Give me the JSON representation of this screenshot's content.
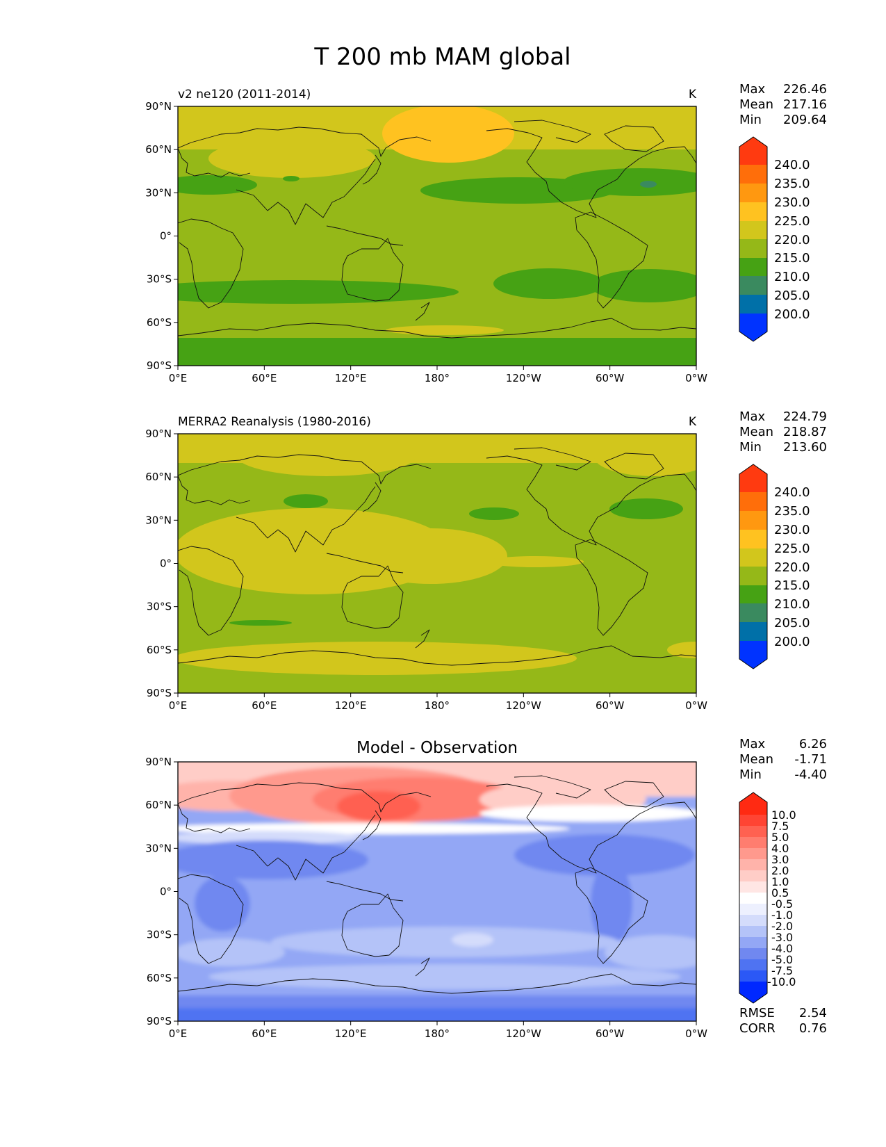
{
  "figure_title": "T 200 mb MAM global",
  "lat_ticks": [
    "90°N",
    "60°N",
    "30°N",
    "0°",
    "30°S",
    "60°S",
    "90°S"
  ],
  "lon_ticks": [
    "0°E",
    "60°E",
    "120°E",
    "180°",
    "120°W",
    "60°W",
    "0°W"
  ],
  "stat_names": {
    "max": "Max",
    "mean": "Mean",
    "min": "Min",
    "rmse": "RMSE",
    "corr": "CORR"
  },
  "colors": {
    "c195_200": "#0033ff",
    "c200_205": "#0070a8",
    "c205_210": "#3a8a5f",
    "c210_215": "#46a214",
    "c215_220": "#95b818",
    "c220_225": "#d2c61c",
    "c225_230": "#ffc220",
    "c230_235": "#ff9810",
    "c235_240": "#ff6e0a",
    "c240_up": "#ff3a10",
    "d_m10": "#0028ff",
    "d_m7_5": "#2b58f6",
    "d_m5": "#4f73f2",
    "d_m4": "#7088f0",
    "d_m3": "#93a7f5",
    "d_m2": "#b4c3f8",
    "d_m1": "#d4dcfb",
    "d_m0_5": "#edf0fe",
    "d_0_5": "#ffffff",
    "d_1": "#ffe6e4",
    "d_2": "#ffcdc7",
    "d_3": "#ffb3aa",
    "d_4": "#ff998d",
    "d_5": "#ff7d6f",
    "d_7_5": "#ff6151",
    "d_10": "#ff4433",
    "d_up": "#ff2a12"
  },
  "panels": [
    {
      "title": "v2 ne120 (2011-2014)",
      "units": "K",
      "stats": {
        "max": "226.46",
        "mean": "217.16",
        "min": "209.64"
      },
      "colorbar": {
        "labels": [
          "240.0",
          "235.0",
          "230.0",
          "225.0",
          "220.0",
          "215.0",
          "210.0",
          "205.0",
          "200.0"
        ]
      },
      "field_description": "Model 200 mb temperature: mostly 215-220 K, warm 225-230 K over the North Pacific at 60°N, cool 210-215 K bands at 30°N and 40-50°S and over Antarctica."
    },
    {
      "title": "MERRA2 Reanalysis (1980-2016)",
      "units": "K",
      "stats": {
        "max": "224.79",
        "mean": "218.87",
        "min": "213.60"
      },
      "colorbar": {
        "labels": [
          "240.0",
          "235.0",
          "230.0",
          "225.0",
          "220.0",
          "215.0",
          "210.0",
          "205.0",
          "200.0"
        ]
      },
      "field_description": "Reanalysis 200 mb temperature: 220-225 K in tropics and high latitudes, 215-220 K in mid-latitudes."
    },
    {
      "title": "Model - Observation",
      "units": "",
      "stats": {
        "max": "6.26",
        "mean": "-1.71",
        "min": "-4.40",
        "rmse": "2.54",
        "corr": "0.76"
      },
      "colorbar": {
        "labels": [
          "10.0",
          "7.5",
          "5.0",
          "4.0",
          "3.0",
          "2.0",
          "1.0",
          "0.5",
          "-0.5",
          "-1.0",
          "-2.0",
          "-3.0",
          "-4.0",
          "-5.0",
          "-7.5",
          "-10.0"
        ]
      },
      "field_description": "Difference: positive (red) north of 45°N peaking near 60°N 140°E, negative (blue) elsewhere."
    }
  ]
}
